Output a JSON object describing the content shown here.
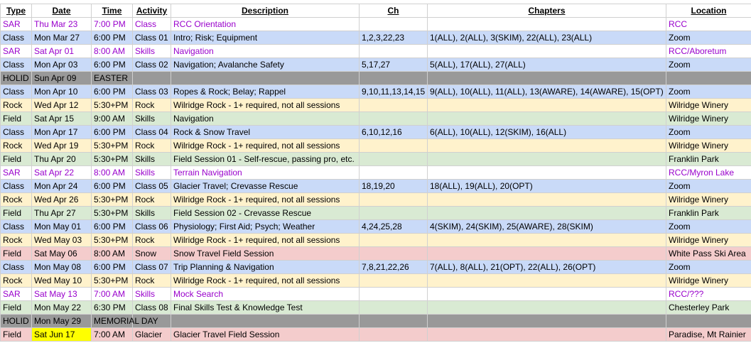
{
  "headers": {
    "type": "Type",
    "date": "Date",
    "time": "Time",
    "activity": "Activity",
    "description": "Description",
    "ch": "Ch",
    "chapters": "Chapters",
    "location": "Location"
  },
  "rows": [
    {
      "style": "sar",
      "type": "SAR",
      "date": "Thu Mar 23",
      "time": "7:00 PM",
      "activity": "Class",
      "description": "RCC Orientation",
      "ch": "",
      "chapters": "",
      "location": "RCC"
    },
    {
      "style": "class",
      "type": "Class",
      "date": "Mon Mar 27",
      "time": "6:00 PM",
      "activity": "Class 01",
      "description": "Intro; Risk; Equipment",
      "ch": "1,2,3,22,23",
      "chapters": "1(ALL), 2(ALL), 3(SKIM), 22(ALL), 23(ALL)",
      "location": "Zoom"
    },
    {
      "style": "sar",
      "type": "SAR",
      "date": "Sat Apr 01",
      "time": "8:00 AM",
      "activity": "Skills",
      "description": "Navigation",
      "ch": "",
      "chapters": "",
      "location": "RCC/Aboretum"
    },
    {
      "style": "class",
      "type": "Class",
      "date": "Mon Apr 03",
      "time": "6:00 PM",
      "activity": "Class 02",
      "description": "Navigation; Avalanche Safety",
      "ch": "5,17,27",
      "chapters": "5(ALL), 17(ALL), 27(ALL)",
      "location": "Zoom"
    },
    {
      "style": "holiday",
      "type": "HOLID",
      "date": "Sun Apr 09",
      "time": "EASTER",
      "activity": "",
      "description": "",
      "ch": "",
      "chapters": "",
      "location": ""
    },
    {
      "style": "class",
      "type": "Class",
      "date": "Mon Apr 10",
      "time": "6:00 PM",
      "activity": "Class 03",
      "description": "Ropes & Rock; Belay; Rappel",
      "ch": "9,10,11,13,14,15",
      "chapters": "9(ALL), 10(ALL), 11(ALL), 13(AWARE), 14(AWARE), 15(OPT)",
      "location": "Zoom"
    },
    {
      "style": "rock",
      "type": "Rock",
      "date": "Wed Apr 12",
      "time": "5:30+PM",
      "activity": "Rock",
      "description": "Wilridge Rock - 1+ required, not all sessions",
      "ch": "",
      "chapters": "",
      "location": "Wilridge Winery"
    },
    {
      "style": "field",
      "type": "Field",
      "date": "Sat Apr 15",
      "time": "9:00 AM",
      "activity": "Skills",
      "description": "Navigation",
      "ch": "",
      "chapters": "",
      "location": "Wilridge Winery"
    },
    {
      "style": "class",
      "type": "Class",
      "date": "Mon Apr 17",
      "time": "6:00 PM",
      "activity": "Class 04",
      "description": "Rock & Snow Travel",
      "ch": "6,10,12,16",
      "chapters": "6(ALL), 10(ALL), 12(SKIM), 16(ALL)",
      "location": "Zoom"
    },
    {
      "style": "rock",
      "type": "Rock",
      "date": "Wed Apr 19",
      "time": "5:30+PM",
      "activity": "Rock",
      "description": "Wilridge Rock - 1+ required, not all sessions",
      "ch": "",
      "chapters": "",
      "location": "Wilridge Winery"
    },
    {
      "style": "field",
      "type": "Field",
      "date": "Thu Apr 20",
      "time": "5:30+PM",
      "activity": "Skills",
      "description": "Field Session 01 - Self-rescue, passing pro, etc.",
      "ch": "",
      "chapters": "",
      "location": "Franklin Park"
    },
    {
      "style": "sar",
      "type": "SAR",
      "date": "Sat Apr 22",
      "time": "8:00 AM",
      "activity": "Skills",
      "description": "Terrain Navigation",
      "ch": "",
      "chapters": "",
      "location": "RCC/Myron Lake"
    },
    {
      "style": "class",
      "type": "Class",
      "date": "Mon Apr 24",
      "time": "6:00 PM",
      "activity": "Class 05",
      "description": "Glacier Travel; Crevasse Rescue",
      "ch": "18,19,20",
      "chapters": "18(ALL), 19(ALL), 20(OPT)",
      "location": "Zoom"
    },
    {
      "style": "rock",
      "type": "Rock",
      "date": "Wed Apr 26",
      "time": "5:30+PM",
      "activity": "Rock",
      "description": "Wilridge Rock - 1+ required, not all sessions",
      "ch": "",
      "chapters": "",
      "location": "Wilridge Winery"
    },
    {
      "style": "field",
      "type": "Field",
      "date": "Thu Apr 27",
      "time": "5:30+PM",
      "activity": "Skills",
      "description": "Field Session 02 - Crevasse Rescue",
      "ch": "",
      "chapters": "",
      "location": "Franklin Park"
    },
    {
      "style": "class",
      "type": "Class",
      "date": "Mon May 01",
      "time": "6:00 PM",
      "activity": "Class 06",
      "description": "Physiology; First Aid; Psych; Weather",
      "ch": "4,24,25,28",
      "chapters": "4(SKIM), 24(SKIM), 25(AWARE), 28(SKIM)",
      "location": "Zoom"
    },
    {
      "style": "rock",
      "type": "Rock",
      "date": "Wed May 03",
      "time": "5:30+PM",
      "activity": "Rock",
      "description": "Wilridge Rock - 1+ required, not all sessions",
      "ch": "",
      "chapters": "",
      "location": "Wilridge Winery"
    },
    {
      "style": "snow",
      "type": "Field",
      "date": "Sat May 06",
      "time": "8:00 AM",
      "activity": "Snow",
      "description": "Snow Travel Field Session",
      "ch": "",
      "chapters": "",
      "location": "White Pass Ski Area"
    },
    {
      "style": "class",
      "type": "Class",
      "date": "Mon May 08",
      "time": "6:00 PM",
      "activity": "Class 07",
      "description": "Trip Planning & Navigation",
      "ch": "7,8,21,22,26",
      "chapters": "7(ALL), 8(ALL), 21(OPT), 22(ALL), 26(OPT)",
      "location": "Zoom"
    },
    {
      "style": "rock",
      "type": "Rock",
      "date": "Wed May 10",
      "time": "5:30+PM",
      "activity": "Rock",
      "description": "Wilridge Rock - 1+ required, not all sessions",
      "ch": "",
      "chapters": "",
      "location": "Wilridge Winery"
    },
    {
      "style": "sar",
      "type": "SAR",
      "date": "Sat May 13",
      "time": "7:00 AM",
      "activity": "Skills",
      "description": "Mock Search",
      "ch": "",
      "chapters": "",
      "location": "RCC/???"
    },
    {
      "style": "field",
      "type": "Field",
      "date": "Mon May 22",
      "time": "6:30 PM",
      "activity": "Class 08",
      "description": "Final Skills Test & Knowledge Test",
      "ch": "",
      "chapters": "",
      "location": "Chesterley Park"
    },
    {
      "style": "holiday",
      "type": "HOLID",
      "date": "Mon May 29",
      "time": "MEMORIAL DAY",
      "activity": "",
      "description": "",
      "ch": "",
      "chapters": "",
      "location": ""
    },
    {
      "style": "snow",
      "type": "Field",
      "date": "Sat Jun 17",
      "date_highlight": true,
      "time": "7:00 AM",
      "activity": "Glacier",
      "description": "Glacier Travel Field Session",
      "ch": "",
      "chapters": "",
      "location": "Paradise, Mt Rainier"
    }
  ]
}
